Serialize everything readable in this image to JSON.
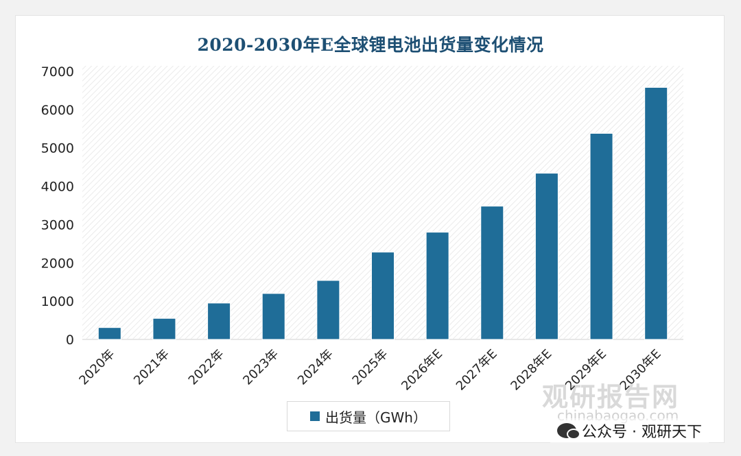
{
  "chart_data": {
    "type": "bar",
    "title": "2020-2030年E全球锂电池出货量变化情况",
    "categories": [
      "2020年",
      "2021年",
      "2022年",
      "2023年",
      "2024年",
      "2025年",
      "2026年E",
      "2027年E",
      "2028年E",
      "2029年E",
      "2030年E"
    ],
    "series": [
      {
        "name": "出货量（GWh）",
        "values": [
          310,
          550,
          950,
          1200,
          1540,
          2280,
          2800,
          3480,
          4340,
          5380,
          6580
        ]
      }
    ],
    "ylim": [
      0,
      7000
    ],
    "yticks": [
      0,
      1000,
      2000,
      3000,
      4000,
      5000,
      6000,
      7000
    ],
    "grid": false,
    "legend_position": "bottom",
    "bar_color": "#1f6d98"
  },
  "watermark": {
    "brand": "观研报告网",
    "url": "chinabaogao.com"
  },
  "wechat": {
    "label": "公众号 · 观研天下"
  }
}
